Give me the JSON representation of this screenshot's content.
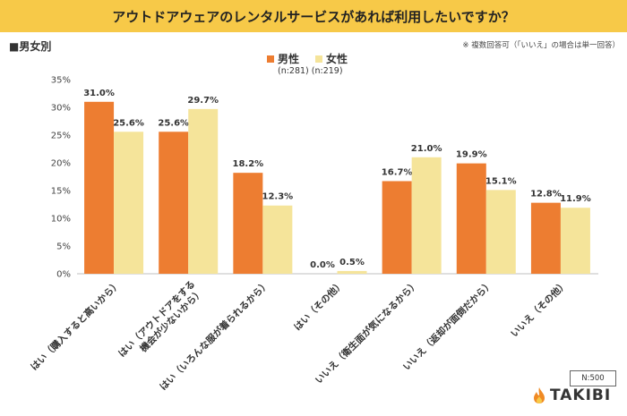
{
  "title": "アウトドアウェアのレンタルサービスがあれば利用したいですか？",
  "section_label": "■男女別",
  "note": "※ 複数回答可（「いいえ」の場合は単一回答）",
  "legend": {
    "male_label": "男性",
    "female_label": "女性",
    "counts": "(n:281)  (n:219)"
  },
  "colors": {
    "male": "#ed7d31",
    "female": "#f5e49a",
    "accent": "#f7c948"
  },
  "sample_size": "N:500",
  "brand": "TAKIBI",
  "chart_data": {
    "type": "bar",
    "categories": [
      "はい（購入すると高いから）",
      "はい（アウトドアをする機会が少ないから）",
      "はい（いろんな服が着られるから）",
      "はい（その他）",
      "いいえ（衛生面が気になるから）",
      "いいえ（返却が面倒だから）",
      "いいえ（その他）"
    ],
    "series": [
      {
        "name": "男性",
        "values": [
          31.0,
          25.6,
          18.2,
          0.0,
          16.7,
          19.9,
          12.8
        ]
      },
      {
        "name": "女性",
        "values": [
          25.6,
          29.7,
          12.3,
          0.5,
          21.0,
          15.1,
          11.9
        ]
      }
    ],
    "yticks": [
      "0%",
      "5%",
      "10%",
      "15%",
      "20%",
      "25%",
      "30%",
      "35%"
    ],
    "ylim": [
      0,
      35
    ],
    "value_labels_male": [
      "31.0%",
      "25.6%",
      "18.2%",
      "0.0%",
      "16.7%",
      "19.9%",
      "12.8%"
    ],
    "value_labels_female": [
      "25.6%",
      "29.7%",
      "12.3%",
      "0.5%",
      "21.0%",
      "15.1%",
      "11.9%"
    ],
    "grid": false,
    "legend_position": "top-center"
  }
}
